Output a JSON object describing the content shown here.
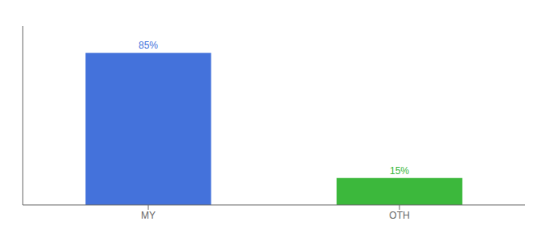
{
  "chart_data": {
    "type": "bar",
    "categories": [
      "MY",
      "OTH"
    ],
    "values": [
      85,
      15
    ],
    "value_labels": [
      "85%",
      "15%"
    ],
    "colors": [
      "#4472db",
      "#3cb83c"
    ],
    "ylim": [
      0,
      100
    ],
    "data_labels": true,
    "tick_labels": "x",
    "grid": false
  }
}
